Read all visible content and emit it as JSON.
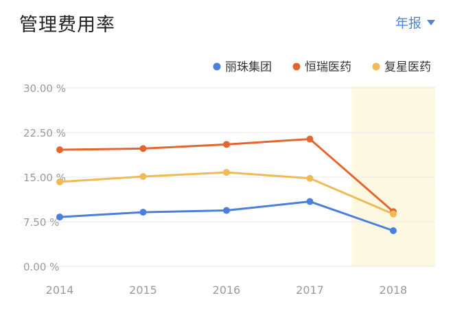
{
  "header": {
    "title": "管理费用率",
    "period_label": "年报",
    "accent_color": "#4a87d8"
  },
  "chart_data": {
    "type": "line",
    "x": [
      "2014",
      "2015",
      "2016",
      "2017",
      "2018"
    ],
    "ylim": [
      0,
      30
    ],
    "yticks": [
      0,
      7.5,
      15,
      22.5,
      30
    ],
    "ytick_labels": [
      "0.00 %",
      "7.50 %",
      "15.00 %",
      "22.50 %",
      "30.00 %"
    ],
    "grid": true,
    "legend_position": "top-right",
    "highlight_category": "2018",
    "highlight_color": "#fdf8e1",
    "series": [
      {
        "name": "丽珠集团",
        "color": "#4a7fdc",
        "values": [
          8.3,
          9.1,
          9.4,
          10.9,
          6.0
        ]
      },
      {
        "name": "恒瑞医药",
        "color": "#e2662e",
        "values": [
          19.6,
          19.8,
          20.5,
          21.4,
          9.2
        ]
      },
      {
        "name": "复星医药",
        "color": "#eebb55",
        "values": [
          14.2,
          15.1,
          15.8,
          14.8,
          8.8
        ]
      }
    ]
  }
}
